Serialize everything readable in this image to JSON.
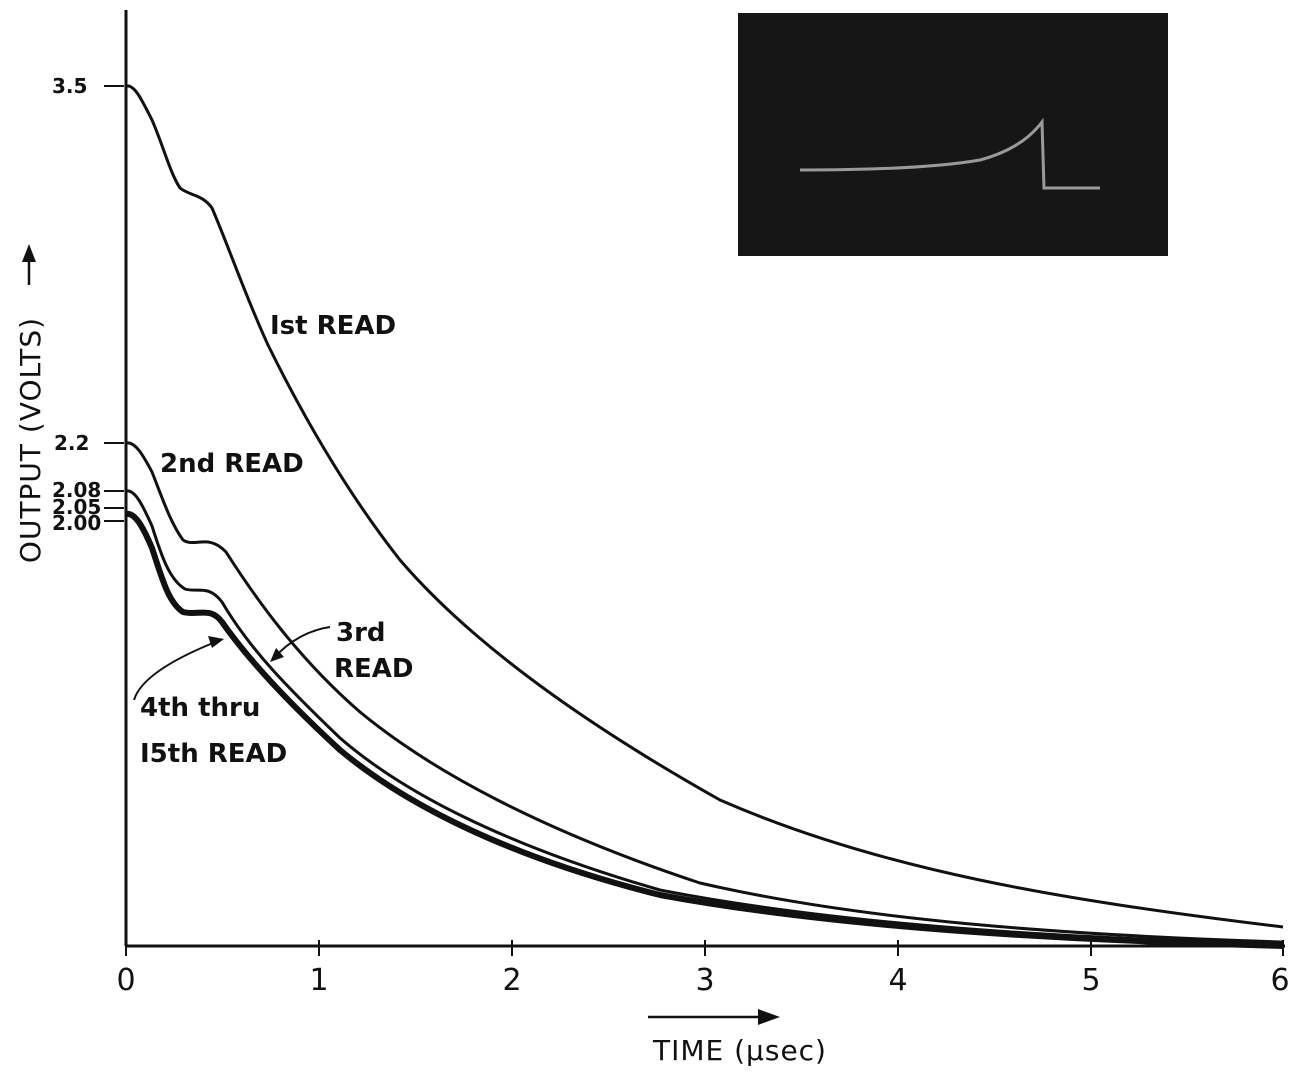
{
  "chart_data": {
    "type": "line",
    "xlabel": "TIME (μsec)",
    "ylabel": "OUTPUT (VOLTS)",
    "xlim": [
      0,
      6
    ],
    "x_ticks": [
      "0",
      "1",
      "2",
      "3",
      "4",
      "5",
      "6"
    ],
    "y_ticks": [
      "3.5",
      "2.2",
      "2.08",
      "2.05",
      "2.00"
    ],
    "grid": false,
    "legend": "none",
    "series": [
      {
        "name": "1st READ",
        "x": [
          0,
          0.1,
          0.3,
          0.45,
          0.7,
          1.0,
          1.5,
          2.0,
          3.0,
          4.0,
          5.0,
          6.0
        ],
        "y": [
          3.5,
          3.35,
          2.87,
          2.8,
          2.35,
          1.9,
          1.4,
          1.05,
          0.55,
          0.32,
          0.18,
          0.08
        ]
      },
      {
        "name": "2nd READ",
        "x": [
          0,
          0.1,
          0.3,
          0.45,
          0.7,
          1.0,
          1.5,
          2.0,
          3.0,
          4.0,
          5.0,
          6.0
        ],
        "y": [
          2.2,
          2.05,
          1.62,
          1.62,
          1.3,
          1.0,
          0.65,
          0.45,
          0.22,
          0.12,
          0.06,
          0.02
        ]
      },
      {
        "name": "3rd READ",
        "x": [
          0,
          0.1,
          0.3,
          0.45,
          0.7,
          1.0,
          1.5,
          2.0,
          3.0,
          4.0,
          5.0,
          6.0
        ],
        "y": [
          2.08,
          1.95,
          1.43,
          1.43,
          1.2,
          0.9,
          0.58,
          0.4,
          0.2,
          0.1,
          0.05,
          0.02
        ]
      },
      {
        "name": "4th thru 15th READ",
        "x": [
          0,
          0.1,
          0.3,
          0.45,
          0.7,
          1.0,
          1.5,
          2.0,
          3.0,
          4.0,
          5.0,
          6.0
        ],
        "y": [
          2.02,
          1.9,
          1.35,
          1.35,
          1.15,
          0.88,
          0.55,
          0.38,
          0.18,
          0.09,
          0.04,
          0.01
        ]
      }
    ],
    "annotations": {
      "first": "Ist READ",
      "second": "2nd READ",
      "third_line1": "3rd",
      "third_line2": "READ",
      "fourth_line1": "4th thru",
      "fourth_line2": "I5th READ"
    },
    "inset": "oscilloscope photograph of a single output pulse"
  }
}
